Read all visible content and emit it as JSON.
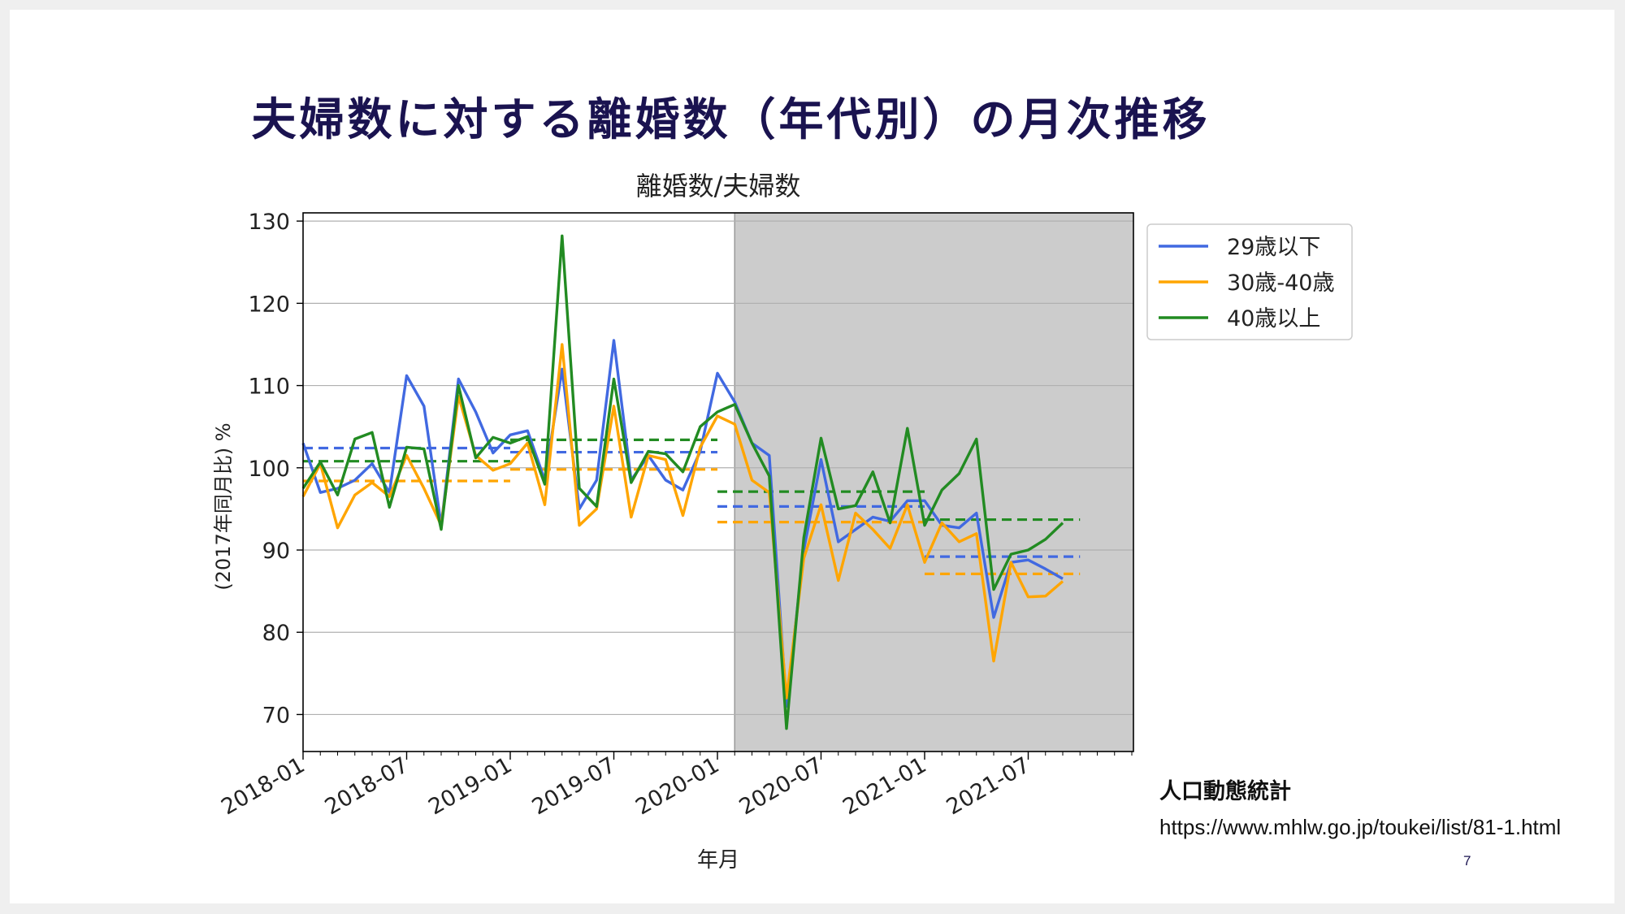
{
  "slide": {
    "title": "夫婦数に対する離婚数（年代別）の月次推移",
    "source_name": "人口動態統計",
    "source_url": "https://www.mhlw.go.jp/toukei/list/81-1.html",
    "page_number": "7"
  },
  "chart_data": {
    "type": "line",
    "title": "離婚数/夫婦数",
    "xlabel": "年月",
    "ylabel": "(2017年同月比) %",
    "x_ticks": [
      "2018-01",
      "2018-07",
      "2019-01",
      "2019-07",
      "2020-01",
      "2020-07",
      "2021-01",
      "2021-07"
    ],
    "y_ticks": [
      70,
      80,
      90,
      100,
      110,
      120,
      130
    ],
    "ylim": [
      65.5,
      131
    ],
    "x_start": "2018-01",
    "grid": "horizontal",
    "legend_position": "upper-right-outside",
    "shaded_region": {
      "from": "2020-02",
      "to": "2022-01",
      "color": "#cccccc"
    },
    "series": [
      {
        "name": "29歳以下",
        "color": "#4169e1",
        "values": [
          103.0,
          97.0,
          97.5,
          98.5,
          100.5,
          97.0,
          111.2,
          107.5,
          93.0,
          110.8,
          106.8,
          101.8,
          104.0,
          104.5,
          98.5,
          112.0,
          95.0,
          98.5,
          115.5,
          98.5,
          101.5,
          98.5,
          97.3,
          102.0,
          111.5,
          108.0,
          103.0,
          101.5,
          71.0,
          90.0,
          101.0,
          91.0,
          92.5,
          94.0,
          93.5,
          96.0,
          96.0,
          93.0,
          92.7,
          94.5,
          81.8,
          88.5,
          88.8,
          87.7,
          86.5
        ],
        "averages": [
          {
            "from": "2018-01",
            "to": "2019-01",
            "value": 102.4
          },
          {
            "from": "2019-01",
            "to": "2020-01",
            "value": 101.9
          },
          {
            "from": "2020-01",
            "to": "2021-01",
            "value": 95.3
          },
          {
            "from": "2021-01",
            "to": "2021-10",
            "value": 89.2
          }
        ]
      },
      {
        "name": "30歳-40歳",
        "color": "#ffa500",
        "values": [
          96.5,
          100.5,
          92.7,
          96.7,
          98.2,
          96.5,
          101.5,
          97.5,
          93.0,
          108.7,
          101.5,
          99.7,
          100.5,
          103.0,
          95.5,
          115.0,
          93.0,
          95.0,
          107.5,
          94.0,
          101.5,
          101.0,
          94.2,
          102.5,
          106.3,
          105.3,
          98.5,
          97.0,
          72.0,
          89.0,
          95.5,
          86.3,
          94.5,
          92.5,
          90.2,
          95.5,
          88.5,
          93.3,
          91.0,
          92.0,
          76.5,
          88.5,
          84.3,
          84.4,
          86.2
        ],
        "averages": [
          {
            "from": "2018-01",
            "to": "2019-01",
            "value": 98.4
          },
          {
            "from": "2019-01",
            "to": "2020-01",
            "value": 99.8
          },
          {
            "from": "2020-01",
            "to": "2021-01",
            "value": 93.4
          },
          {
            "from": "2021-01",
            "to": "2021-10",
            "value": 87.1
          }
        ]
      },
      {
        "name": "40歳以上",
        "color": "#228b22",
        "values": [
          97.5,
          100.7,
          96.7,
          103.5,
          104.3,
          95.2,
          102.5,
          102.3,
          92.5,
          110.0,
          101.2,
          103.7,
          103.0,
          103.8,
          98.0,
          128.2,
          97.5,
          95.3,
          110.8,
          98.2,
          102.0,
          101.7,
          99.5,
          105.0,
          106.8,
          107.7,
          103.0,
          99.0,
          68.3,
          91.5,
          103.6,
          95.0,
          95.4,
          99.5,
          93.3,
          104.8,
          93.0,
          97.3,
          99.3,
          103.5,
          85.2,
          89.5,
          90.0,
          91.3,
          93.3
        ],
        "averages": [
          {
            "from": "2018-01",
            "to": "2019-01",
            "value": 100.8
          },
          {
            "from": "2019-01",
            "to": "2020-01",
            "value": 103.4
          },
          {
            "from": "2020-01",
            "to": "2021-01",
            "value": 97.1
          },
          {
            "from": "2021-01",
            "to": "2021-10",
            "value": 93.7
          }
        ]
      }
    ]
  }
}
